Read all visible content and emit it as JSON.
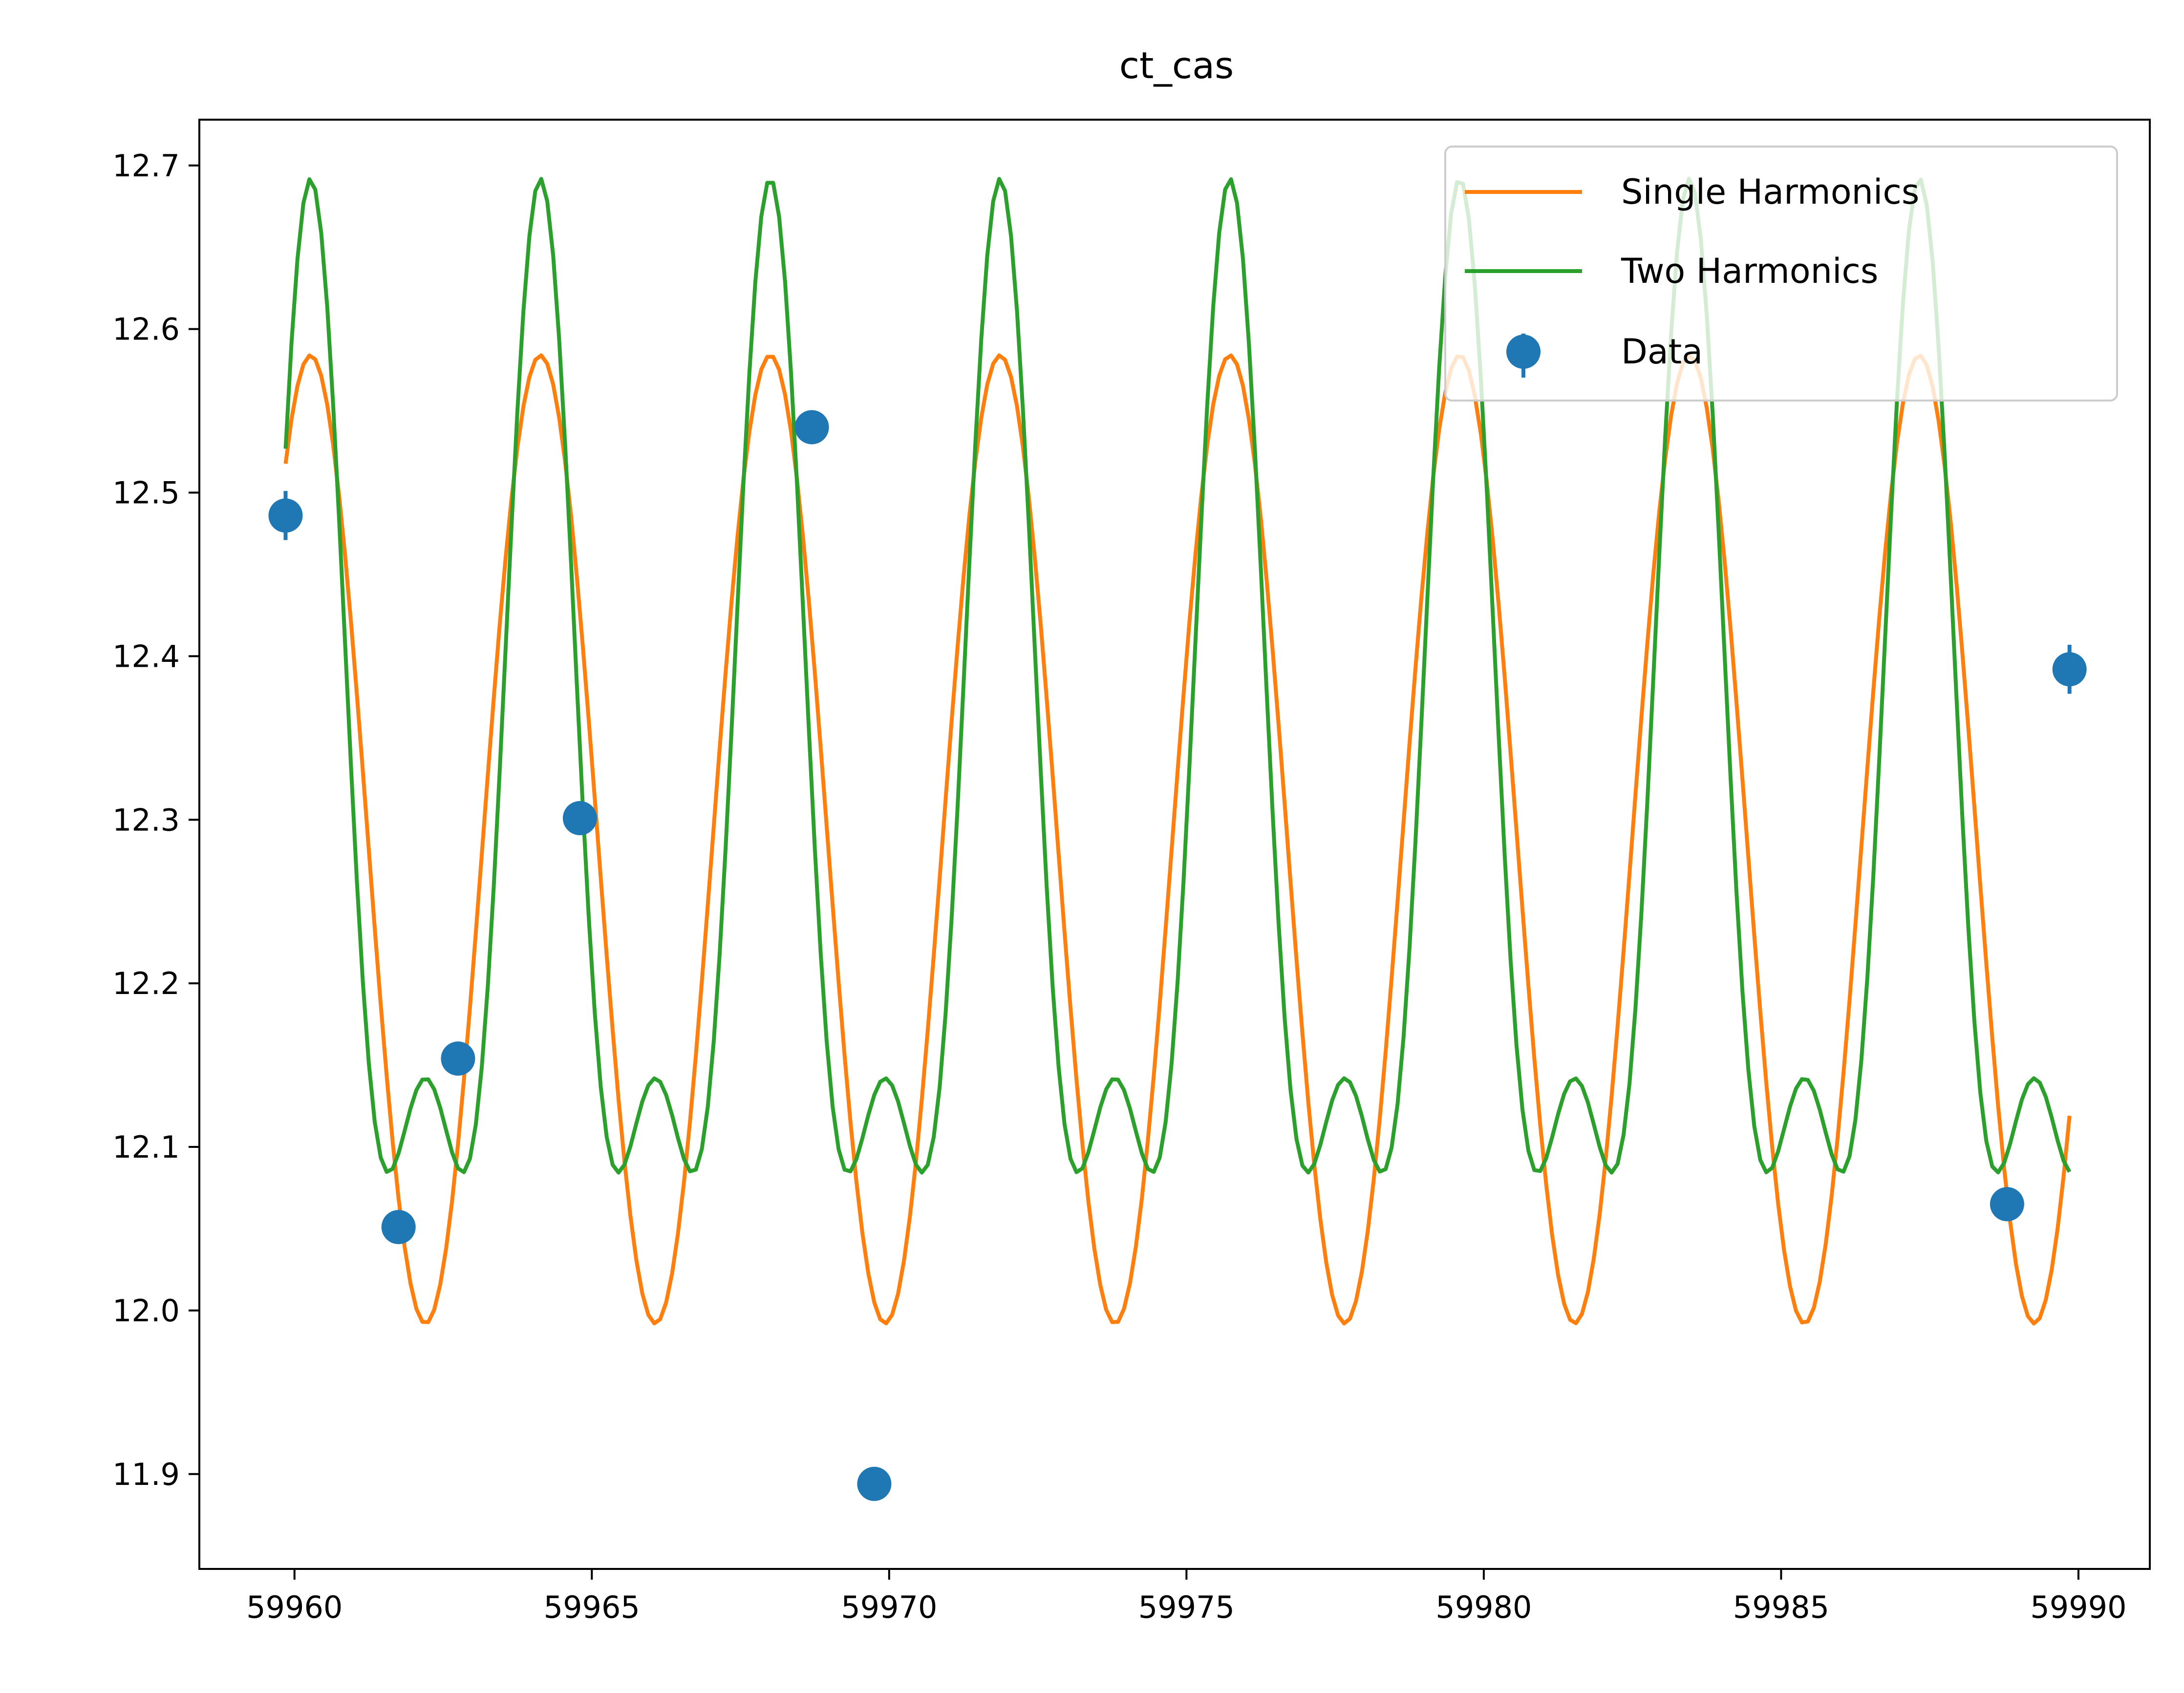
{
  "chart_data": {
    "type": "line",
    "title": "ct_cas",
    "xlabel": "",
    "ylabel": "",
    "xlim": [
      59958.4,
      59991.2
    ],
    "ylim": [
      11.842,
      12.728
    ],
    "xticks": [
      59960,
      59965,
      59970,
      59975,
      59980,
      59985,
      59990
    ],
    "yticks": [
      11.9,
      12.0,
      12.1,
      12.2,
      12.3,
      12.4,
      12.5,
      12.6,
      12.7
    ],
    "xtick_labels": [
      "59960",
      "59965",
      "59970",
      "59975",
      "59980",
      "59985",
      "59990"
    ],
    "ytick_labels": [
      "11.9",
      "12.0",
      "12.1",
      "12.2",
      "12.3",
      "12.4",
      "12.5",
      "12.6",
      "12.7"
    ],
    "grid": false,
    "legend_position": "top-right",
    "model": {
      "x_start": 59959.85,
      "x_end": 59989.85,
      "period": 3.865,
      "peak_x": 59964.135
    },
    "series": [
      {
        "name": "Single Harmonics",
        "kind": "line",
        "color": "#ff7f0e",
        "mean": 12.288,
        "amp1": 0.296,
        "amp2": 0.0
      },
      {
        "name": "Two Harmonics",
        "kind": "line",
        "color": "#2ca02c",
        "mean": 12.287,
        "amp1": 0.275,
        "amp2": 0.13
      },
      {
        "name": "Data",
        "kind": "errorbar",
        "color": "#1f77b4",
        "points": [
          {
            "x": 59959.85,
            "y": 12.486,
            "err": 0.015
          },
          {
            "x": 59961.75,
            "y": 12.051,
            "err": 0.01
          },
          {
            "x": 59962.75,
            "y": 12.154,
            "err": 0.01
          },
          {
            "x": 59964.8,
            "y": 12.301,
            "err": 0.008
          },
          {
            "x": 59968.7,
            "y": 12.54,
            "err": 0.008
          },
          {
            "x": 59969.75,
            "y": 11.894,
            "err": 0.008
          },
          {
            "x": 59988.8,
            "y": 12.065,
            "err": 0.01
          },
          {
            "x": 59989.85,
            "y": 12.392,
            "err": 0.015
          }
        ]
      }
    ]
  }
}
